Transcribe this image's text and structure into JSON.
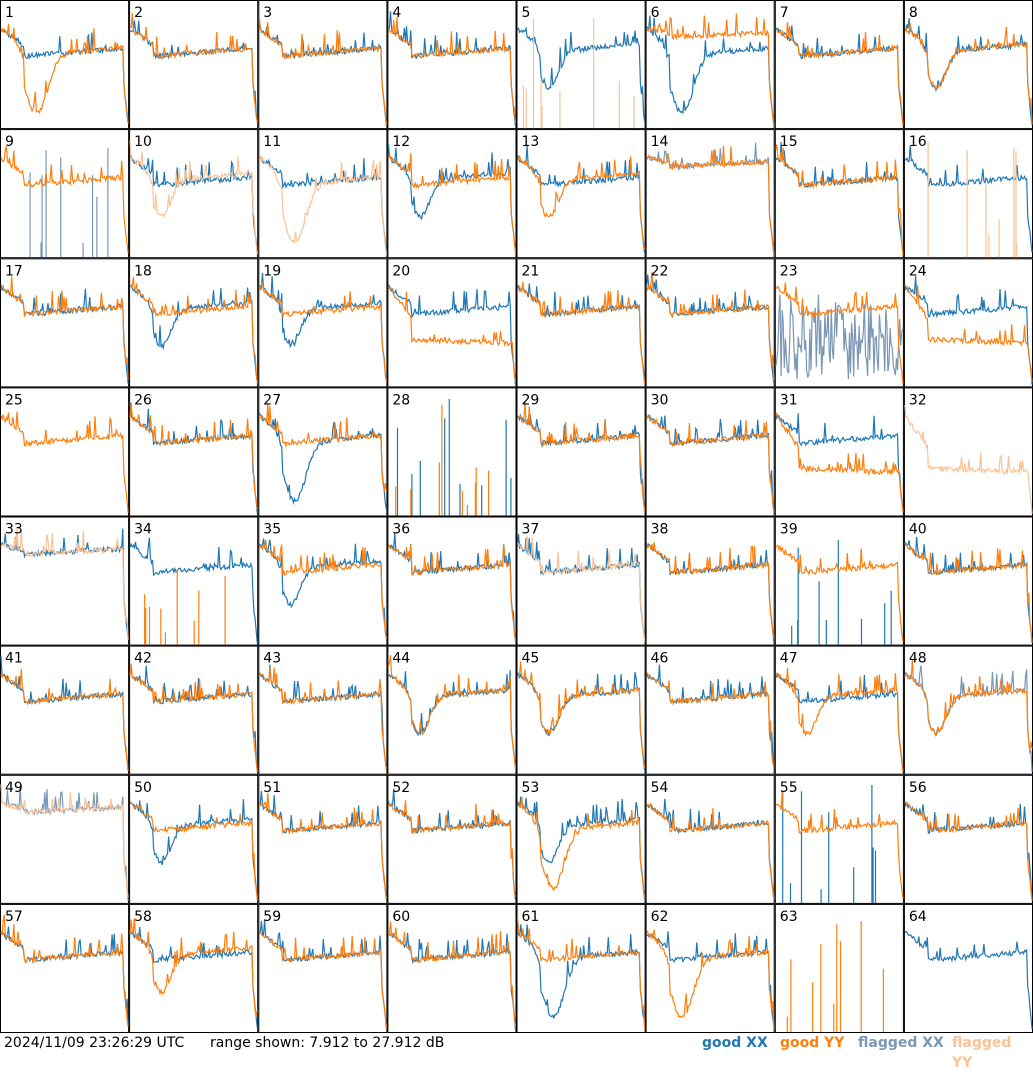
{
  "footer": {
    "timestamp": "2024/11/09 23:26:29 UTC",
    "range_text": "range shown: 7.912 to 27.912 dB",
    "legend": {
      "good_xx": "good XX",
      "good_yy": "good YY",
      "flagged_xx": "flagged XX",
      "flagged_yy": "flagged YY"
    }
  },
  "colors": {
    "good_xx": "#1f77b4",
    "good_yy": "#ff7f0e",
    "flagged_xx": "#7a97b3",
    "flagged_yy": "#fbc295",
    "border": "#000000"
  },
  "chart_data": {
    "type": "line",
    "grid": "8x8 small multiples, no axes",
    "ylim_db": [
      7.912,
      27.912
    ],
    "series_names": [
      "good XX",
      "good YY",
      "flagged XX",
      "flagged YY"
    ],
    "panels": [
      {
        "id": 1,
        "xx": "good",
        "yy": "good",
        "xx_shape": "mid",
        "yy_shape": "deepdip"
      },
      {
        "id": 2,
        "xx": "good",
        "yy": "good",
        "xx_shape": "mid",
        "yy_shape": "mid"
      },
      {
        "id": 3,
        "xx": "good",
        "yy": "good",
        "xx_shape": "mid",
        "yy_shape": "mid"
      },
      {
        "id": 4,
        "xx": "good",
        "yy": "good",
        "xx_shape": "mid",
        "yy_shape": "mid"
      },
      {
        "id": 5,
        "xx": "good",
        "yy": "flagged",
        "xx_shape": "dip",
        "yy_shape": "spikes"
      },
      {
        "id": 6,
        "xx": "good",
        "yy": "good",
        "xx_shape": "deepdip",
        "yy_shape": "high"
      },
      {
        "id": 7,
        "xx": "good",
        "yy": "good",
        "xx_shape": "mid",
        "yy_shape": "mid"
      },
      {
        "id": 8,
        "xx": "good",
        "yy": "good",
        "xx_shape": "dip",
        "yy_shape": "dip"
      },
      {
        "id": 9,
        "xx": "flagged",
        "yy": "good",
        "xx_shape": "spikes",
        "yy_shape": "mid"
      },
      {
        "id": 10,
        "xx": "good",
        "yy": "flagged",
        "xx_shape": "mid",
        "yy_shape": "dip"
      },
      {
        "id": 11,
        "xx": "good",
        "yy": "flagged",
        "xx_shape": "mid",
        "yy_shape": "deepdip"
      },
      {
        "id": 12,
        "xx": "good",
        "yy": "good",
        "xx_shape": "dip",
        "yy_shape": "mid"
      },
      {
        "id": 13,
        "xx": "good",
        "yy": "good",
        "xx_shape": "mid",
        "yy_shape": "dip"
      },
      {
        "id": 14,
        "xx": "flagged",
        "yy": "good",
        "xx_shape": "high",
        "yy_shape": "high"
      },
      {
        "id": 15,
        "xx": "good",
        "yy": "good",
        "xx_shape": "mid",
        "yy_shape": "mid"
      },
      {
        "id": 16,
        "xx": "good",
        "yy": "flagged",
        "xx_shape": "mid",
        "yy_shape": "spikes"
      },
      {
        "id": 17,
        "xx": "good",
        "yy": "good",
        "xx_shape": "mid",
        "yy_shape": "mid"
      },
      {
        "id": 18,
        "xx": "good",
        "yy": "good",
        "xx_shape": "dip",
        "yy_shape": "mid"
      },
      {
        "id": 19,
        "xx": "good",
        "yy": "good",
        "xx_shape": "dip",
        "yy_shape": "mid"
      },
      {
        "id": 20,
        "xx": "good",
        "yy": "good",
        "xx_shape": "mid",
        "yy_shape": "low"
      },
      {
        "id": 21,
        "xx": "good",
        "yy": "good",
        "xx_shape": "mid",
        "yy_shape": "mid"
      },
      {
        "id": 22,
        "xx": "good",
        "yy": "good",
        "xx_shape": "mid",
        "yy_shape": "mid"
      },
      {
        "id": 23,
        "xx": "flagged",
        "yy": "good",
        "xx_shape": "noise",
        "yy_shape": "mid"
      },
      {
        "id": 24,
        "xx": "good",
        "yy": "good",
        "xx_shape": "mid",
        "yy_shape": "low"
      },
      {
        "id": 25,
        "xx": "flagged",
        "yy": "good",
        "xx_shape": "none",
        "yy_shape": "mid"
      },
      {
        "id": 26,
        "xx": "good",
        "yy": "good",
        "xx_shape": "mid",
        "yy_shape": "mid"
      },
      {
        "id": 27,
        "xx": "good",
        "yy": "good",
        "xx_shape": "deepdip",
        "yy_shape": "mid"
      },
      {
        "id": 28,
        "xx": "good",
        "yy": "good",
        "xx_shape": "spikes",
        "yy_shape": "spikes"
      },
      {
        "id": 29,
        "xx": "good",
        "yy": "good",
        "xx_shape": "mid",
        "yy_shape": "mid"
      },
      {
        "id": 30,
        "xx": "good",
        "yy": "good",
        "xx_shape": "mid",
        "yy_shape": "mid"
      },
      {
        "id": 31,
        "xx": "good",
        "yy": "good",
        "xx_shape": "mid",
        "yy_shape": "low"
      },
      {
        "id": 32,
        "xx": "flagged",
        "yy": "flagged",
        "xx_shape": "none",
        "yy_shape": "low"
      },
      {
        "id": 33,
        "xx": "good",
        "yy": "flagged",
        "xx_shape": "high",
        "yy_shape": "high"
      },
      {
        "id": 34,
        "xx": "good",
        "yy": "good",
        "xx_shape": "mid",
        "yy_shape": "spikes"
      },
      {
        "id": 35,
        "xx": "good",
        "yy": "good",
        "xx_shape": "dip",
        "yy_shape": "mid"
      },
      {
        "id": 36,
        "xx": "good",
        "yy": "good",
        "xx_shape": "mid",
        "yy_shape": "mid"
      },
      {
        "id": 37,
        "xx": "good",
        "yy": "flagged",
        "xx_shape": "mid",
        "yy_shape": "mid"
      },
      {
        "id": 38,
        "xx": "good",
        "yy": "good",
        "xx_shape": "mid",
        "yy_shape": "mid"
      },
      {
        "id": 39,
        "xx": "good",
        "yy": "good",
        "xx_shape": "spikes",
        "yy_shape": "mid"
      },
      {
        "id": 40,
        "xx": "good",
        "yy": "good",
        "xx_shape": "mid",
        "yy_shape": "mid"
      },
      {
        "id": 41,
        "xx": "good",
        "yy": "good",
        "xx_shape": "mid",
        "yy_shape": "mid"
      },
      {
        "id": 42,
        "xx": "good",
        "yy": "good",
        "xx_shape": "mid",
        "yy_shape": "mid"
      },
      {
        "id": 43,
        "xx": "good",
        "yy": "good",
        "xx_shape": "mid",
        "yy_shape": "mid"
      },
      {
        "id": 44,
        "xx": "good",
        "yy": "good",
        "xx_shape": "dip",
        "yy_shape": "dip"
      },
      {
        "id": 45,
        "xx": "good",
        "yy": "good",
        "xx_shape": "dip",
        "yy_shape": "dip"
      },
      {
        "id": 46,
        "xx": "good",
        "yy": "good",
        "xx_shape": "mid",
        "yy_shape": "mid"
      },
      {
        "id": 47,
        "xx": "good",
        "yy": "good",
        "xx_shape": "mid",
        "yy_shape": "dip"
      },
      {
        "id": 48,
        "xx": "flagged",
        "yy": "good",
        "xx_shape": "dip",
        "yy_shape": "dip"
      },
      {
        "id": 49,
        "xx": "flagged",
        "yy": "flagged",
        "xx_shape": "high",
        "yy_shape": "high"
      },
      {
        "id": 50,
        "xx": "good",
        "yy": "good",
        "xx_shape": "dip",
        "yy_shape": "mid"
      },
      {
        "id": 51,
        "xx": "good",
        "yy": "good",
        "xx_shape": "mid",
        "yy_shape": "mid"
      },
      {
        "id": 52,
        "xx": "good",
        "yy": "good",
        "xx_shape": "mid",
        "yy_shape": "mid"
      },
      {
        "id": 53,
        "xx": "good",
        "yy": "good",
        "xx_shape": "dip",
        "yy_shape": "deepdip"
      },
      {
        "id": 54,
        "xx": "good",
        "yy": "good",
        "xx_shape": "mid",
        "yy_shape": "mid"
      },
      {
        "id": 55,
        "xx": "good",
        "yy": "good",
        "xx_shape": "spikes",
        "yy_shape": "mid"
      },
      {
        "id": 56,
        "xx": "good",
        "yy": "good",
        "xx_shape": "mid",
        "yy_shape": "mid"
      },
      {
        "id": 57,
        "xx": "good",
        "yy": "good",
        "xx_shape": "mid",
        "yy_shape": "mid"
      },
      {
        "id": 58,
        "xx": "good",
        "yy": "good",
        "xx_shape": "mid",
        "yy_shape": "dip"
      },
      {
        "id": 59,
        "xx": "good",
        "yy": "good",
        "xx_shape": "mid",
        "yy_shape": "mid"
      },
      {
        "id": 60,
        "xx": "good",
        "yy": "good",
        "xx_shape": "mid",
        "yy_shape": "mid"
      },
      {
        "id": 61,
        "xx": "good",
        "yy": "good",
        "xx_shape": "deepdip",
        "yy_shape": "mid"
      },
      {
        "id": 62,
        "xx": "good",
        "yy": "good",
        "xx_shape": "mid",
        "yy_shape": "deepdip"
      },
      {
        "id": 63,
        "xx": "good",
        "yy": "good",
        "xx_shape": "none",
        "yy_shape": "spikes"
      },
      {
        "id": 64,
        "xx": "good",
        "yy": "good",
        "xx_shape": "mid",
        "yy_shape": "none"
      }
    ]
  }
}
